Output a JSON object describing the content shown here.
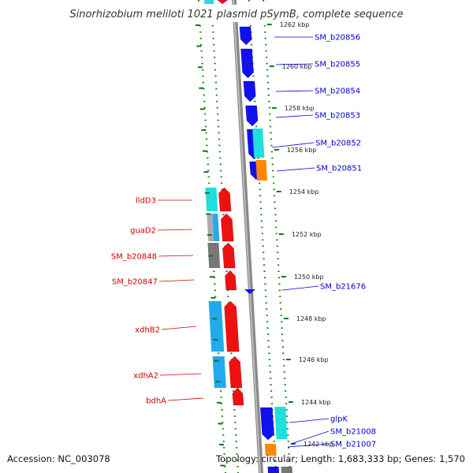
{
  "title": "Sinorhizobium meliloti 1021 plasmid pSymB, complete sequence",
  "footer": {
    "accession": "Accession: NC_003078",
    "summary": "Topology: circular; Length: 1,683,333 bp; Genes: 1,570"
  },
  "colors": {
    "forward_gene": "#ee1111",
    "reverse_gene": "#1111ee",
    "rna_cyan": "#22dddd",
    "rna_light_blue": "#22aaee",
    "orange": "#ff8800",
    "gray": "#777777",
    "light_gray": "#aaaaaa",
    "tick_green": "#117711",
    "label_red": "#cc0000",
    "label_blue": "#0000cc"
  },
  "ticks": [
    "1262 kbp",
    "1260 kbp",
    "1258 kbp",
    "1256 kbp",
    "1254 kbp",
    "1252 kbp",
    "1250 kbp",
    "1248 kbp",
    "1246 kbp",
    "1244 kbp",
    "1242 kbp"
  ],
  "genes_right": [
    "SM_b20856",
    "SM_b20855",
    "SM_b20854",
    "SM_b20853",
    "SM_b20852",
    "SM_b20851",
    "SM_b21676",
    "glpK",
    "SM_b21008",
    "SM_b21007"
  ],
  "genes_left": [
    "lldD3",
    "guaD2",
    "SM_b20848",
    "SM_b20847",
    "xdhB2",
    "xdhA2",
    "bdhA"
  ]
}
